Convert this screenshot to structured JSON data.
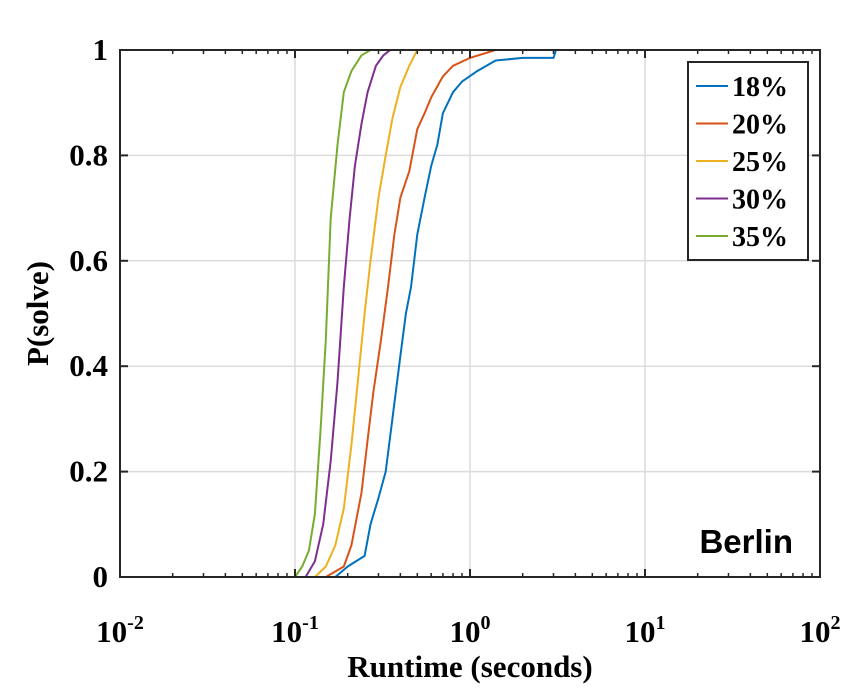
{
  "chart_data": {
    "type": "line",
    "title": "",
    "annotation": "Berlin",
    "xlabel": "Runtime (seconds)",
    "ylabel": "P(solve)",
    "xscale": "log",
    "xlim": [
      0.01,
      100
    ],
    "ylim": [
      0,
      1
    ],
    "x_ticks": [
      {
        "base": "10",
        "exp": "-2",
        "value": 0.01
      },
      {
        "base": "10",
        "exp": "-1",
        "value": 0.1
      },
      {
        "base": "10",
        "exp": "0",
        "value": 1
      },
      {
        "base": "10",
        "exp": "1",
        "value": 10
      },
      {
        "base": "10",
        "exp": "2",
        "value": 100
      }
    ],
    "y_ticks": [
      {
        "label": "0",
        "value": 0
      },
      {
        "label": "0.2",
        "value": 0.2
      },
      {
        "label": "0.4",
        "value": 0.4
      },
      {
        "label": "0.6",
        "value": 0.6
      },
      {
        "label": "0.8",
        "value": 0.8
      },
      {
        "label": "1",
        "value": 1
      }
    ],
    "grid": true,
    "legend_position": "top-right",
    "series": [
      {
        "name": "18%",
        "color": "#0072BD",
        "points": [
          [
            0.17,
            0
          ],
          [
            0.2,
            0.02
          ],
          [
            0.25,
            0.04
          ],
          [
            0.27,
            0.1
          ],
          [
            0.3,
            0.15
          ],
          [
            0.33,
            0.2
          ],
          [
            0.36,
            0.3
          ],
          [
            0.4,
            0.42
          ],
          [
            0.43,
            0.5
          ],
          [
            0.46,
            0.55
          ],
          [
            0.5,
            0.65
          ],
          [
            0.55,
            0.72
          ],
          [
            0.6,
            0.78
          ],
          [
            0.65,
            0.82
          ],
          [
            0.7,
            0.88
          ],
          [
            0.8,
            0.92
          ],
          [
            0.9,
            0.94
          ],
          [
            1.1,
            0.96
          ],
          [
            1.4,
            0.98
          ],
          [
            2,
            0.985
          ],
          [
            3,
            0.985
          ],
          [
            3.1,
            1
          ],
          [
            100,
            1
          ]
        ]
      },
      {
        "name": "20%",
        "color": "#D95319",
        "points": [
          [
            0.15,
            0
          ],
          [
            0.19,
            0.02
          ],
          [
            0.21,
            0.06
          ],
          [
            0.24,
            0.16
          ],
          [
            0.26,
            0.26
          ],
          [
            0.28,
            0.35
          ],
          [
            0.31,
            0.45
          ],
          [
            0.34,
            0.55
          ],
          [
            0.37,
            0.65
          ],
          [
            0.4,
            0.72
          ],
          [
            0.45,
            0.77
          ],
          [
            0.5,
            0.85
          ],
          [
            0.55,
            0.88
          ],
          [
            0.6,
            0.91
          ],
          [
            0.7,
            0.95
          ],
          [
            0.8,
            0.97
          ],
          [
            1,
            0.985
          ],
          [
            1.4,
            1
          ],
          [
            100,
            1
          ]
        ]
      },
      {
        "name": "25%",
        "color": "#EDB120",
        "points": [
          [
            0.13,
            0
          ],
          [
            0.15,
            0.02
          ],
          [
            0.17,
            0.06
          ],
          [
            0.19,
            0.13
          ],
          [
            0.21,
            0.25
          ],
          [
            0.23,
            0.38
          ],
          [
            0.25,
            0.5
          ],
          [
            0.27,
            0.6
          ],
          [
            0.3,
            0.72
          ],
          [
            0.33,
            0.8
          ],
          [
            0.36,
            0.87
          ],
          [
            0.4,
            0.93
          ],
          [
            0.45,
            0.97
          ],
          [
            0.5,
            1
          ],
          [
            100,
            1
          ]
        ]
      },
      {
        "name": "30%",
        "color": "#7E2F8E",
        "points": [
          [
            0.115,
            0
          ],
          [
            0.13,
            0.03
          ],
          [
            0.145,
            0.1
          ],
          [
            0.16,
            0.22
          ],
          [
            0.175,
            0.37
          ],
          [
            0.19,
            0.55
          ],
          [
            0.205,
            0.68
          ],
          [
            0.22,
            0.78
          ],
          [
            0.24,
            0.86
          ],
          [
            0.26,
            0.92
          ],
          [
            0.29,
            0.97
          ],
          [
            0.32,
            0.99
          ],
          [
            0.35,
            1
          ],
          [
            100,
            1
          ]
        ]
      },
      {
        "name": "35%",
        "color": "#77AC30",
        "points": [
          [
            0.1,
            0
          ],
          [
            0.11,
            0.02
          ],
          [
            0.12,
            0.05
          ],
          [
            0.13,
            0.12
          ],
          [
            0.14,
            0.28
          ],
          [
            0.15,
            0.45
          ],
          [
            0.16,
            0.68
          ],
          [
            0.175,
            0.82
          ],
          [
            0.19,
            0.92
          ],
          [
            0.21,
            0.96
          ],
          [
            0.24,
            0.99
          ],
          [
            0.27,
            1
          ],
          [
            100,
            1
          ]
        ]
      }
    ]
  }
}
